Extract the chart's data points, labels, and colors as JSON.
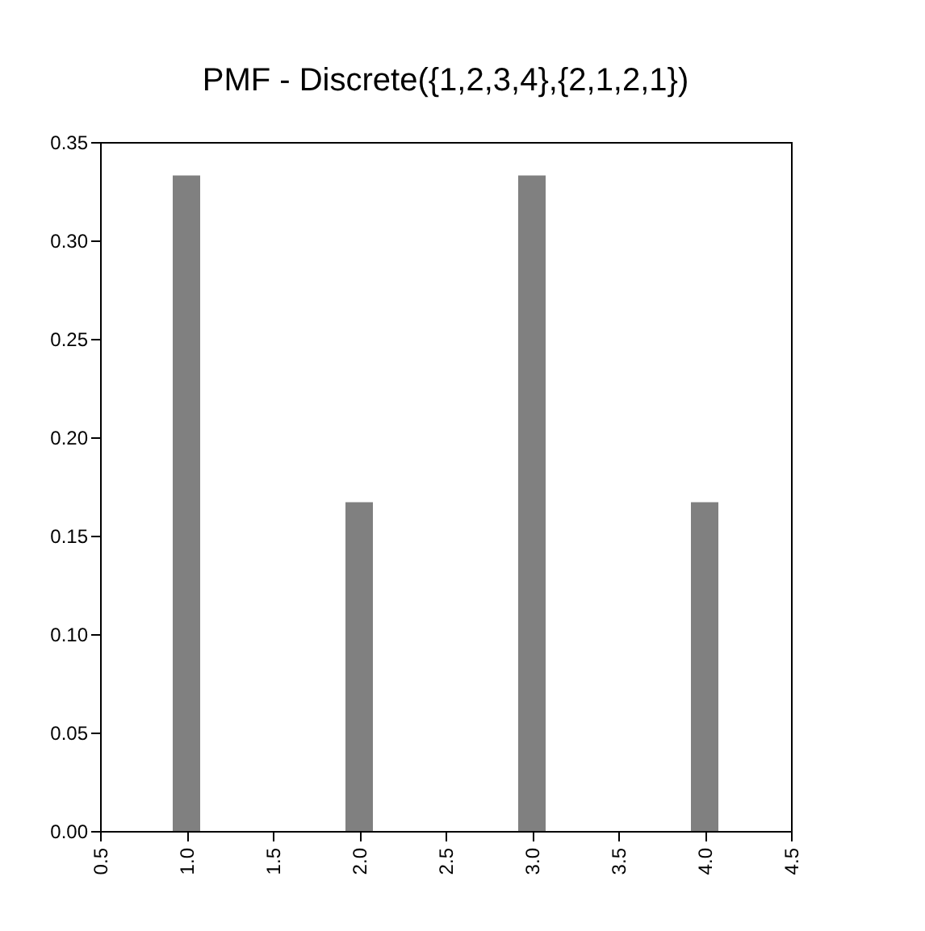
{
  "chart_data": {
    "type": "bar",
    "title": "PMF - Discrete({1,2,3,4},{2,1,2,1})",
    "x": [
      1,
      2,
      3,
      4
    ],
    "values": [
      0.333,
      0.167,
      0.333,
      0.167
    ],
    "color": "#808080",
    "xlim": [
      0.5,
      4.5
    ],
    "xticks": [
      0.5,
      {
        "value": 1,
        "label": "1.0"
      },
      1.5,
      {
        "value": 2,
        "label": "2.0"
      },
      2.5,
      {
        "value": 3,
        "label": "3.0"
      },
      3.5,
      {
        "value": 4,
        "label": "4.0"
      },
      4.5
    ],
    "ylim": [
      0,
      0.35
    ],
    "yticks": [
      {
        "value": 0,
        "label": "0.00"
      },
      {
        "value": 0.05,
        "label": "0.05"
      },
      {
        "value": 0.1,
        "label": "0.10"
      },
      {
        "value": 0.15,
        "label": "0.15"
      },
      {
        "value": 0.2,
        "label": "0.20"
      },
      {
        "value": 0.25,
        "label": "0.25"
      },
      {
        "value": 0.3,
        "label": "0.30"
      },
      {
        "value": 0.35,
        "label": "0.35"
      }
    ],
    "grid": false
  }
}
